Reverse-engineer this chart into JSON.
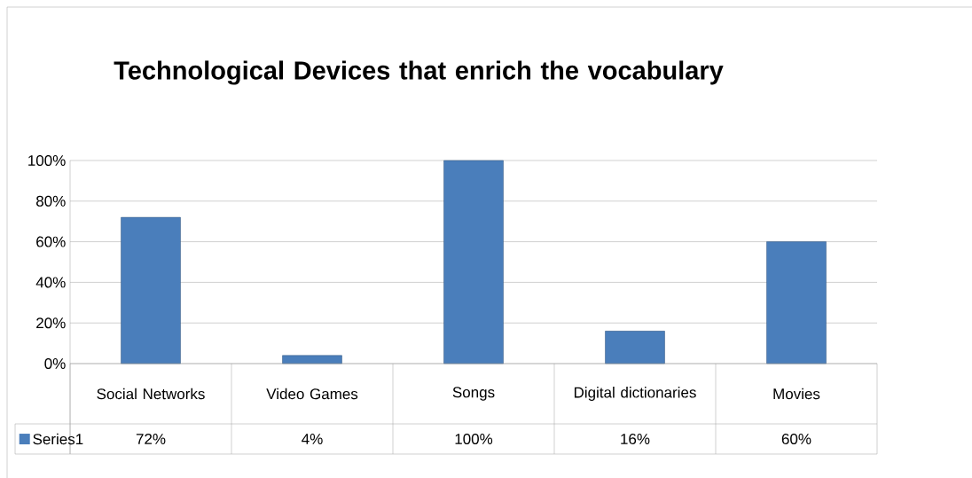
{
  "chart_data": {
    "type": "bar",
    "title": "Technological Devices that enrich the vocabulary",
    "categories": [
      "Social Networks",
      "Video Games",
      "Songs",
      "Digital dictionaries",
      "Movies"
    ],
    "series": [
      {
        "name": "Series1",
        "color": "#4a7ebb",
        "values": [
          72,
          4,
          100,
          16,
          60
        ],
        "value_labels": [
          "72%",
          "4%",
          "100%",
          "16%",
          "60%"
        ]
      }
    ],
    "ylim": [
      0,
      100
    ],
    "yticks": [
      {
        "value": 0,
        "label": "0%"
      },
      {
        "value": 20,
        "label": "20%"
      },
      {
        "value": 40,
        "label": "40%"
      },
      {
        "value": 60,
        "label": "60%"
      },
      {
        "value": 80,
        "label": "80%"
      },
      {
        "value": 100,
        "label": "100%"
      }
    ],
    "grid": "y",
    "legend": "bottom"
  }
}
